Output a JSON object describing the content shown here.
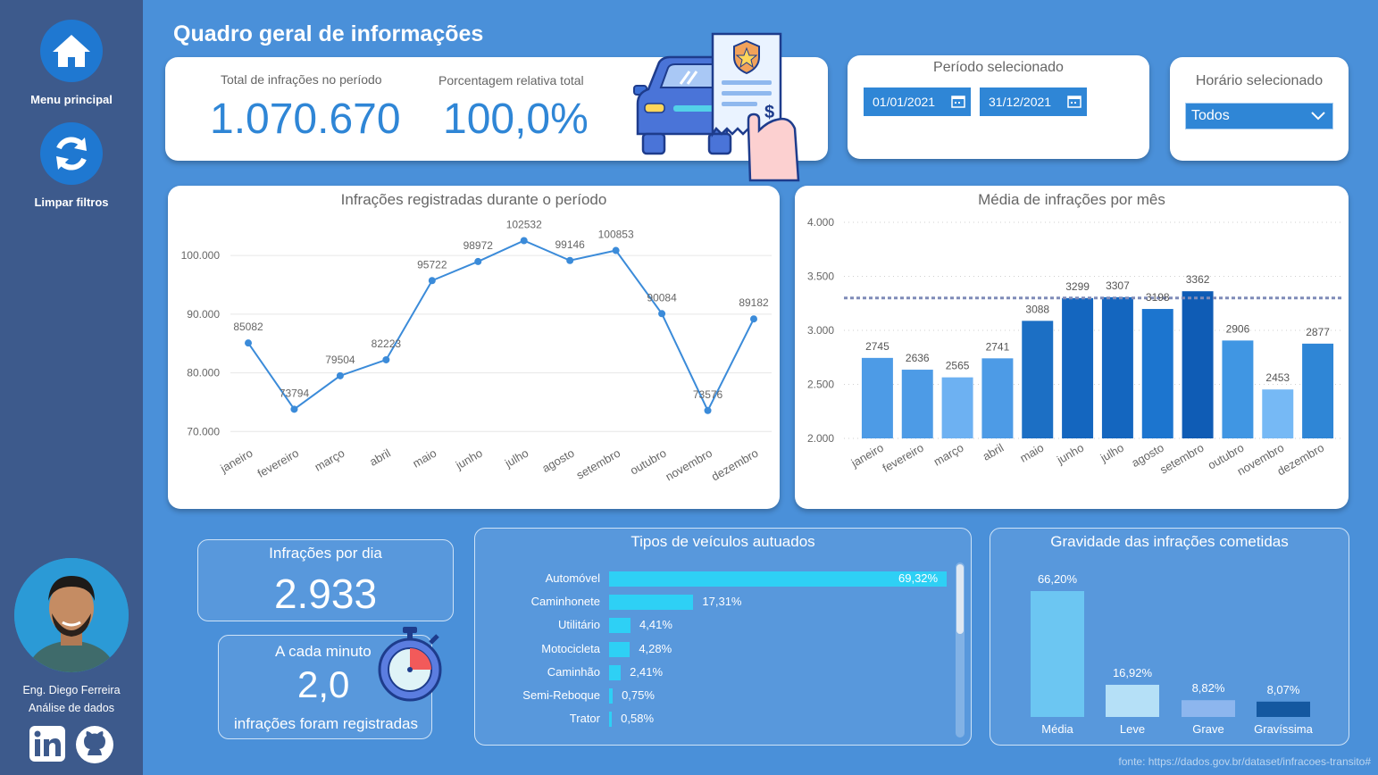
{
  "sidebar": {
    "home_label": "Menu principal",
    "reset_label": "Limpar filtros",
    "author_name": "Eng. Diego Ferreira",
    "author_role": "Análise de dados"
  },
  "header": {
    "title": "Quadro geral de informações"
  },
  "kpis": {
    "total_label": "Total de infrações no período",
    "total_value": "1.070.670",
    "pct_label": "Porcentagem relativa total",
    "pct_value": "100,0%"
  },
  "period": {
    "label": "Período selecionado",
    "start": "01/01/2021",
    "end": "31/12/2021"
  },
  "time_filter": {
    "label": "Horário selecionado",
    "value": "Todos"
  },
  "per_day": {
    "label": "Infrações por dia",
    "value": "2.933"
  },
  "per_minute": {
    "label": "A cada minuto",
    "value": "2,0",
    "caption": "infrações foram registradas"
  },
  "source": "fonte: https://dados.gov.br/dataset/infracoes-transito#",
  "colors": {
    "background": "#4a90d9",
    "sidebar": "#3d5a8c",
    "accent": "#2f86d6",
    "line": "#3b8bd9",
    "hbar": "#2ed0f5"
  },
  "chart_data": [
    {
      "type": "line",
      "title": "Infrações registradas durante o período",
      "categories": [
        "janeiro",
        "fevereiro",
        "março",
        "abril",
        "maio",
        "junho",
        "julho",
        "agosto",
        "setembro",
        "outubro",
        "novembro",
        "dezembro"
      ],
      "values": [
        85082,
        73794,
        79504,
        82223,
        95722,
        98972,
        102532,
        99146,
        100853,
        90084,
        73576,
        89182
      ],
      "yticks": [
        "70.000",
        "80.000",
        "90.000",
        "100.000"
      ],
      "ytick_values": [
        70000,
        80000,
        90000,
        100000
      ],
      "ylim": [
        67000,
        105500
      ],
      "grid": true
    },
    {
      "type": "bar",
      "title": "Média de infrações por mês",
      "categories": [
        "janeiro",
        "fevereiro",
        "março",
        "abril",
        "maio",
        "junho",
        "julho",
        "agosto",
        "setembro",
        "outubro",
        "novembro",
        "dezembro"
      ],
      "values": [
        2745,
        2636,
        2565,
        2741,
        3088,
        3299,
        3307,
        3198,
        3362,
        2906,
        2453,
        2877
      ],
      "bar_colors": [
        "#4d9be6",
        "#4d9be6",
        "#6db1f2",
        "#4d9be6",
        "#1c6fc4",
        "#1466bf",
        "#1466bf",
        "#1c75cf",
        "#0f5cb5",
        "#4096e3",
        "#76b9f5",
        "#2f86d6"
      ],
      "average_line": 3300,
      "yticks": [
        "2.000",
        "2.500",
        "3.000",
        "3.500",
        "4.000"
      ],
      "ytick_values": [
        2000,
        2500,
        3000,
        3500,
        4000
      ],
      "ylim": [
        2000,
        4000
      ],
      "grid": true
    },
    {
      "type": "bar",
      "title": "Tipos de veículos autuados",
      "orientation": "horizontal",
      "categories": [
        "Automóvel",
        "Caminhonete",
        "Utilitário",
        "Motocicleta",
        "Caminhão",
        "Semi-Reboque",
        "Trator"
      ],
      "values": [
        69.32,
        17.31,
        4.41,
        4.28,
        2.41,
        0.75,
        0.58
      ],
      "labels": [
        "69,32%",
        "17,31%",
        "4,41%",
        "4,28%",
        "2,41%",
        "0,75%",
        "0,58%"
      ]
    },
    {
      "type": "bar",
      "title": "Gravidade das infrações cometidas",
      "categories": [
        "Média",
        "Leve",
        "Grave",
        "Gravíssima"
      ],
      "values": [
        66.2,
        16.92,
        8.82,
        8.07
      ],
      "labels": [
        "66,20%",
        "16,92%",
        "8,82%",
        "8,07%"
      ],
      "bar_colors": [
        "#6cc6f2",
        "#b5e0f7",
        "#8db6ee",
        "#1458a0"
      ]
    }
  ]
}
